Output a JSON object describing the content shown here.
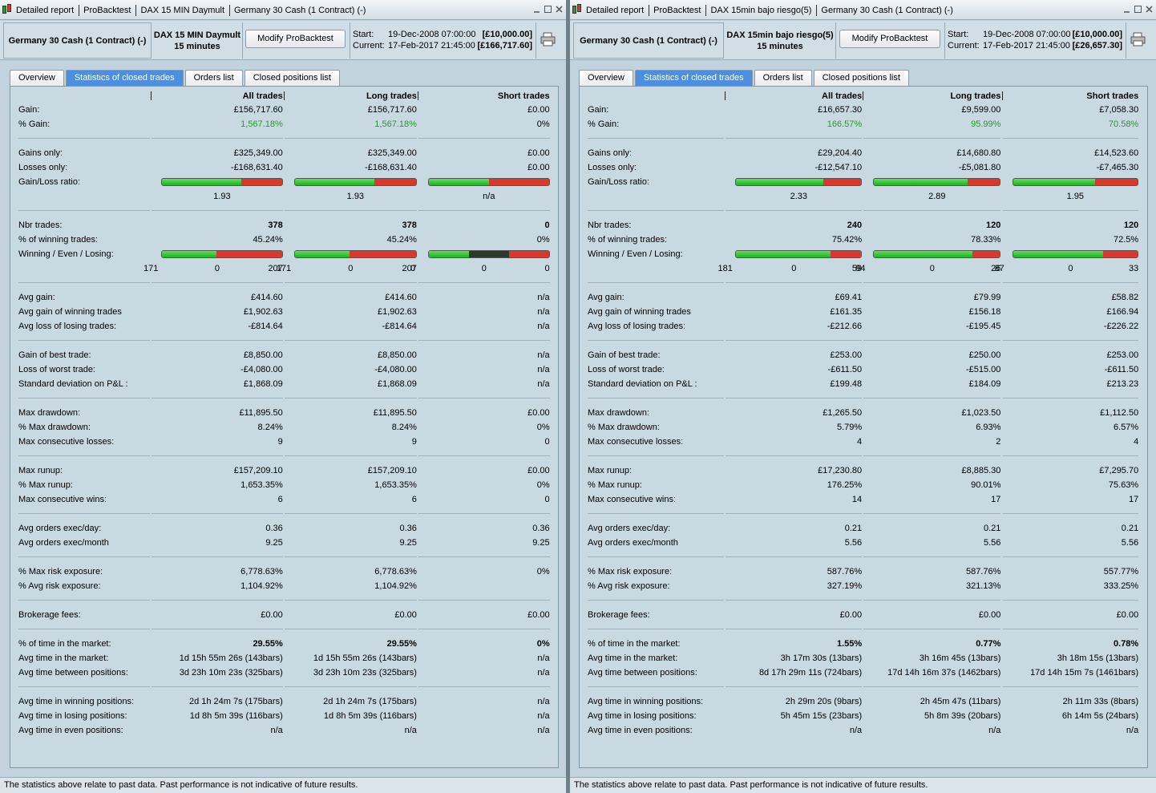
{
  "footer": "The statistics above relate to past data. Past performance is not indicative of future results.",
  "panels": [
    {
      "title_bar": [
        "Detailed report",
        "ProBacktest",
        "DAX 15 MIN Daymult",
        "Germany 30 Cash (1 Contract) (-)"
      ],
      "header": {
        "instrument": "Germany 30 Cash (1 Contract) (-)",
        "strategy": "DAX 15 MIN Daymult",
        "period": "15 minutes",
        "button": "Modify ProBacktest",
        "start": {
          "label": "Start:",
          "date": "19-Dec-2008 07:00:00",
          "capital": "[£10,000.00]"
        },
        "current": {
          "label": "Current:",
          "date": "17-Feb-2017 21:45:00",
          "capital": "[£166,717.60]"
        }
      },
      "tabs": [
        "Overview",
        "Statistics of closed trades",
        "Orders list",
        "Closed positions list"
      ],
      "active_tab": 1,
      "columns": [
        "All trades",
        "Long trades",
        "Short trades"
      ],
      "sections": [
        [
          {
            "label": "Gain:",
            "values": [
              "£156,717.60",
              "£156,717.60",
              "£0.00"
            ]
          },
          {
            "label": "% Gain:",
            "values": [
              "1,567.18%",
              "1,567.18%",
              "0%"
            ],
            "value_colors": [
              "#1f9e1f",
              "#1f9e1f",
              "#000000"
            ]
          }
        ],
        [
          {
            "label": "Gains only:",
            "values": [
              "£325,349.00",
              "£325,349.00",
              "£0.00"
            ]
          },
          {
            "label": "Losses only:",
            "values": [
              "-£168,631.40",
              "-£168,631.40",
              "£0.00"
            ]
          },
          {
            "label": "Gain/Loss ratio:",
            "kind": "ratio",
            "values": [
              "1.93",
              "1.93",
              "n/a"
            ]
          }
        ],
        [
          {
            "label": "Nbr trades:",
            "values": [
              "378",
              "378",
              "0"
            ],
            "bold": true
          },
          {
            "label": "% of winning trades:",
            "values": [
              "45.24%",
              "45.24%",
              "0%"
            ]
          },
          {
            "label": "Winning / Even / Losing:",
            "kind": "wel",
            "counts": [
              [
                171,
                0,
                207
              ],
              [
                171,
                0,
                207
              ],
              [
                0,
                0,
                0
              ]
            ]
          }
        ],
        [
          {
            "label": "Avg gain:",
            "values": [
              "£414.60",
              "£414.60",
              "n/a"
            ]
          },
          {
            "label": "Avg gain of winning trades",
            "values": [
              "£1,902.63",
              "£1,902.63",
              "n/a"
            ]
          },
          {
            "label": "Avg loss of losing trades:",
            "values": [
              "-£814.64",
              "-£814.64",
              "n/a"
            ]
          }
        ],
        [
          {
            "label": "Gain of best trade:",
            "values": [
              "£8,850.00",
              "£8,850.00",
              "n/a"
            ]
          },
          {
            "label": "Loss of worst trade:",
            "values": [
              "-£4,080.00",
              "-£4,080.00",
              "n/a"
            ]
          },
          {
            "label": "Standard deviation on P&L :",
            "values": [
              "£1,868.09",
              "£1,868.09",
              "n/a"
            ]
          }
        ],
        [
          {
            "label": "Max drawdown:",
            "values": [
              "£11,895.50",
              "£11,895.50",
              "£0.00"
            ]
          },
          {
            "label": "% Max drawdown:",
            "values": [
              "8.24%",
              "8.24%",
              "0%"
            ]
          },
          {
            "label": "Max consecutive losses:",
            "values": [
              "9",
              "9",
              "0"
            ]
          }
        ],
        [
          {
            "label": "Max runup:",
            "values": [
              "£157,209.10",
              "£157,209.10",
              "£0.00"
            ]
          },
          {
            "label": "% Max runup:",
            "values": [
              "1,653.35%",
              "1,653.35%",
              "0%"
            ]
          },
          {
            "label": "Max consecutive wins:",
            "values": [
              "6",
              "6",
              "0"
            ]
          }
        ],
        [
          {
            "label": "Avg orders exec/day:",
            "values": [
              "0.36",
              "0.36",
              "0.36"
            ]
          },
          {
            "label": "Avg orders exec/month",
            "values": [
              "9.25",
              "9.25",
              "9.25"
            ]
          }
        ],
        [
          {
            "label": "% Max risk exposure:",
            "values": [
              "6,778.63%",
              "6,778.63%",
              "0%"
            ]
          },
          {
            "label": "% Avg risk exposure:",
            "values": [
              "1,104.92%",
              "1,104.92%",
              null
            ]
          }
        ],
        [
          {
            "label": "Brokerage fees:",
            "values": [
              "£0.00",
              "£0.00",
              "£0.00"
            ]
          }
        ],
        [
          {
            "label": "% of time in the market:",
            "values": [
              "29.55%",
              "29.55%",
              "0%"
            ],
            "bold": true
          },
          {
            "label": "Avg time in the market:",
            "values": [
              "1d 15h 55m 26s (143bars)",
              "1d 15h 55m 26s (143bars)",
              "n/a"
            ]
          },
          {
            "label": "Avg time between positions:",
            "values": [
              "3d 23h 10m 23s (325bars)",
              "3d 23h 10m 23s (325bars)",
              "n/a"
            ]
          }
        ],
        [
          {
            "label": "Avg time in winning positions:",
            "values": [
              "2d 1h 24m 7s (175bars)",
              "2d 1h 24m 7s (175bars)",
              "n/a"
            ]
          },
          {
            "label": "Avg time in losing positions:",
            "values": [
              "1d 8h 5m 39s (116bars)",
              "1d 8h 5m 39s (116bars)",
              "n/a"
            ]
          },
          {
            "label": "Avg time in even positions:",
            "values": [
              "n/a",
              "n/a",
              "n/a"
            ]
          }
        ]
      ]
    },
    {
      "title_bar": [
        "Detailed report",
        "ProBacktest",
        "DAX 15min bajo riesgo(5)",
        "Germany 30 Cash (1 Contract) (-)"
      ],
      "header": {
        "instrument": "Germany 30 Cash (1 Contract) (-)",
        "strategy": "DAX 15min bajo riesgo(5)",
        "period": "15 minutes",
        "button": "Modify ProBacktest",
        "start": {
          "label": "Start:",
          "date": "19-Dec-2008 07:00:00",
          "capital": "[£10,000.00]"
        },
        "current": {
          "label": "Current:",
          "date": "17-Feb-2017 21:45:00",
          "capital": "[£26,657.30]"
        }
      },
      "tabs": [
        "Overview",
        "Statistics of closed trades",
        "Orders list",
        "Closed positions list"
      ],
      "active_tab": 1,
      "columns": [
        "All trades",
        "Long trades",
        "Short trades"
      ],
      "sections": [
        [
          {
            "label": "Gain:",
            "values": [
              "£16,657.30",
              "£9,599.00",
              "£7,058.30"
            ]
          },
          {
            "label": "% Gain:",
            "values": [
              "166.57%",
              "95.99%",
              "70.58%"
            ],
            "value_colors": [
              "#1f9e1f",
              "#1f9e1f",
              "#1f9e1f"
            ]
          }
        ],
        [
          {
            "label": "Gains only:",
            "values": [
              "£29,204.40",
              "£14,680.80",
              "£14,523.60"
            ]
          },
          {
            "label": "Losses only:",
            "values": [
              "-£12,547.10",
              "-£5,081.80",
              "-£7,465.30"
            ]
          },
          {
            "label": "Gain/Loss ratio:",
            "kind": "ratio",
            "values": [
              "2.33",
              "2.89",
              "1.95"
            ]
          }
        ],
        [
          {
            "label": "Nbr trades:",
            "values": [
              "240",
              "120",
              "120"
            ],
            "bold": true
          },
          {
            "label": "% of winning trades:",
            "values": [
              "75.42%",
              "78.33%",
              "72.5%"
            ]
          },
          {
            "label": "Winning / Even / Losing:",
            "kind": "wel",
            "counts": [
              [
                181,
                0,
                59
              ],
              [
                94,
                0,
                26
              ],
              [
                87,
                0,
                33
              ]
            ]
          }
        ],
        [
          {
            "label": "Avg gain:",
            "values": [
              "£69.41",
              "£79.99",
              "£58.82"
            ]
          },
          {
            "label": "Avg gain of winning trades",
            "values": [
              "£161.35",
              "£156.18",
              "£166.94"
            ]
          },
          {
            "label": "Avg loss of losing trades:",
            "values": [
              "-£212.66",
              "-£195.45",
              "-£226.22"
            ]
          }
        ],
        [
          {
            "label": "Gain of best trade:",
            "values": [
              "£253.00",
              "£250.00",
              "£253.00"
            ]
          },
          {
            "label": "Loss of worst trade:",
            "values": [
              "-£611.50",
              "-£515.00",
              "-£611.50"
            ]
          },
          {
            "label": "Standard deviation on P&L :",
            "values": [
              "£199.48",
              "£184.09",
              "£213.23"
            ]
          }
        ],
        [
          {
            "label": "Max drawdown:",
            "values": [
              "£1,265.50",
              "£1,023.50",
              "£1,112.50"
            ]
          },
          {
            "label": "% Max drawdown:",
            "values": [
              "5.79%",
              "6.93%",
              "6.57%"
            ]
          },
          {
            "label": "Max consecutive losses:",
            "values": [
              "4",
              "2",
              "4"
            ]
          }
        ],
        [
          {
            "label": "Max runup:",
            "values": [
              "£17,230.80",
              "£8,885.30",
              "£7,295.70"
            ]
          },
          {
            "label": "% Max runup:",
            "values": [
              "176.25%",
              "90.01%",
              "75.63%"
            ]
          },
          {
            "label": "Max consecutive wins:",
            "values": [
              "14",
              "17",
              "17"
            ]
          }
        ],
        [
          {
            "label": "Avg orders exec/day:",
            "values": [
              "0.21",
              "0.21",
              "0.21"
            ]
          },
          {
            "label": "Avg orders exec/month",
            "values": [
              "5.56",
              "5.56",
              "5.56"
            ]
          }
        ],
        [
          {
            "label": "% Max risk exposure:",
            "values": [
              "587.76%",
              "587.76%",
              "557.77%"
            ]
          },
          {
            "label": "% Avg risk exposure:",
            "values": [
              "327.19%",
              "321.13%",
              "333.25%"
            ]
          }
        ],
        [
          {
            "label": "Brokerage fees:",
            "values": [
              "£0.00",
              "£0.00",
              "£0.00"
            ]
          }
        ],
        [
          {
            "label": "% of time in the market:",
            "values": [
              "1.55%",
              "0.77%",
              "0.78%"
            ],
            "bold": true
          },
          {
            "label": "Avg time in the market:",
            "values": [
              "3h 17m 30s (13bars)",
              "3h 16m 45s (13bars)",
              "3h 18m 15s (13bars)"
            ]
          },
          {
            "label": "Avg time between positions:",
            "values": [
              "8d 17h 29m 11s (724bars)",
              "17d 14h 16m 37s (1462bars)",
              "17d 14h 15m 7s (1461bars)"
            ]
          }
        ],
        [
          {
            "label": "Avg time in winning positions:",
            "values": [
              "2h 29m 20s (9bars)",
              "2h 45m 47s (11bars)",
              "2h 11m 33s (8bars)"
            ]
          },
          {
            "label": "Avg time in losing positions:",
            "values": [
              "5h 45m 15s (23bars)",
              "5h 8m 39s (20bars)",
              "6h 14m 5s (24bars)"
            ]
          },
          {
            "label": "Avg time in even positions:",
            "values": [
              "n/a",
              "n/a",
              "n/a"
            ]
          }
        ]
      ]
    }
  ]
}
